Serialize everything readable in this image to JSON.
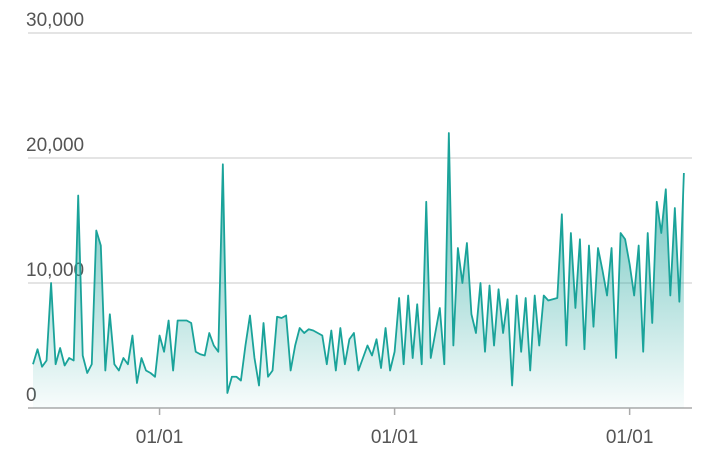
{
  "chart_data": {
    "type": "area",
    "categories": [
      null,
      null,
      null,
      null,
      null,
      null,
      null,
      null,
      null,
      null,
      null,
      null,
      null,
      null,
      null,
      null,
      null,
      null,
      null,
      null,
      null,
      null,
      null,
      null,
      null,
      null,
      null,
      null,
      "01/01",
      null,
      null,
      null,
      null,
      null,
      null,
      null,
      null,
      null,
      null,
      null,
      null,
      null,
      null,
      null,
      null,
      null,
      null,
      null,
      null,
      null,
      null,
      null,
      null,
      null,
      null,
      null,
      null,
      null,
      null,
      null,
      null,
      null,
      null,
      null,
      null,
      null,
      null,
      null,
      null,
      null,
      null,
      null,
      null,
      null,
      null,
      null,
      null,
      null,
      null,
      null,
      "01/01",
      null,
      null,
      null,
      null,
      null,
      null,
      null,
      null,
      null,
      null,
      null,
      null,
      null,
      null,
      null,
      null,
      null,
      null,
      null,
      null,
      null,
      null,
      null,
      null,
      null,
      null,
      null,
      null,
      null,
      null,
      null,
      null,
      null,
      null,
      null,
      null,
      null,
      null,
      null,
      null,
      null,
      null,
      null,
      null,
      null,
      null,
      null,
      null,
      null,
      null,
      null,
      "01/01",
      null,
      null,
      null,
      null,
      null,
      null,
      null,
      null,
      null,
      null,
      null,
      null
    ],
    "values": [
      3500,
      4700,
      3300,
      3800,
      10000,
      3500,
      4800,
      3400,
      4000,
      3800,
      17000,
      4200,
      2800,
      3500,
      14200,
      13000,
      3000,
      7500,
      3500,
      3000,
      4000,
      3500,
      5800,
      2000,
      4000,
      3000,
      2800,
      2500,
      5800,
      4500,
      7000,
      3000,
      7000,
      7000,
      7000,
      6800,
      4500,
      4300,
      4200,
      6000,
      5000,
      4500,
      19500,
      1200,
      2500,
      2500,
      2200,
      5000,
      7400,
      4000,
      1800,
      6800,
      2500,
      3000,
      7300,
      7200,
      7400,
      3000,
      5000,
      6400,
      6000,
      6300,
      6200,
      6000,
      5800,
      3500,
      6200,
      3000,
      6400,
      3500,
      5500,
      6000,
      3000,
      4000,
      5000,
      4200,
      5500,
      3200,
      6400,
      3000,
      4500,
      8800,
      3500,
      9000,
      4000,
      8300,
      3500,
      16500,
      4000,
      6000,
      8000,
      3500,
      22000,
      5000,
      12800,
      10000,
      13200,
      7500,
      6000,
      10000,
      4500,
      9800,
      5000,
      9500,
      6000,
      8700,
      1800,
      9000,
      4500,
      8800,
      3000,
      9000,
      5000,
      9000,
      8600,
      8700,
      8800,
      15500,
      5000,
      14000,
      8000,
      13500,
      4700,
      13000,
      6500,
      12800,
      11000,
      9000,
      12800,
      4000,
      14000,
      13500,
      11500,
      9000,
      13000,
      4500,
      14000,
      6800,
      16500,
      14000,
      17500,
      9000,
      16000,
      8500,
      18800
    ],
    "color": "#1aa39a",
    "ylim": [
      0,
      30000
    ],
    "yticks": [
      0,
      {
        "value": 10000,
        "label": "10,000"
      },
      {
        "value": 20000,
        "label": "20,000"
      },
      {
        "value": 30000,
        "label": "30,000"
      }
    ],
    "grid": true
  }
}
